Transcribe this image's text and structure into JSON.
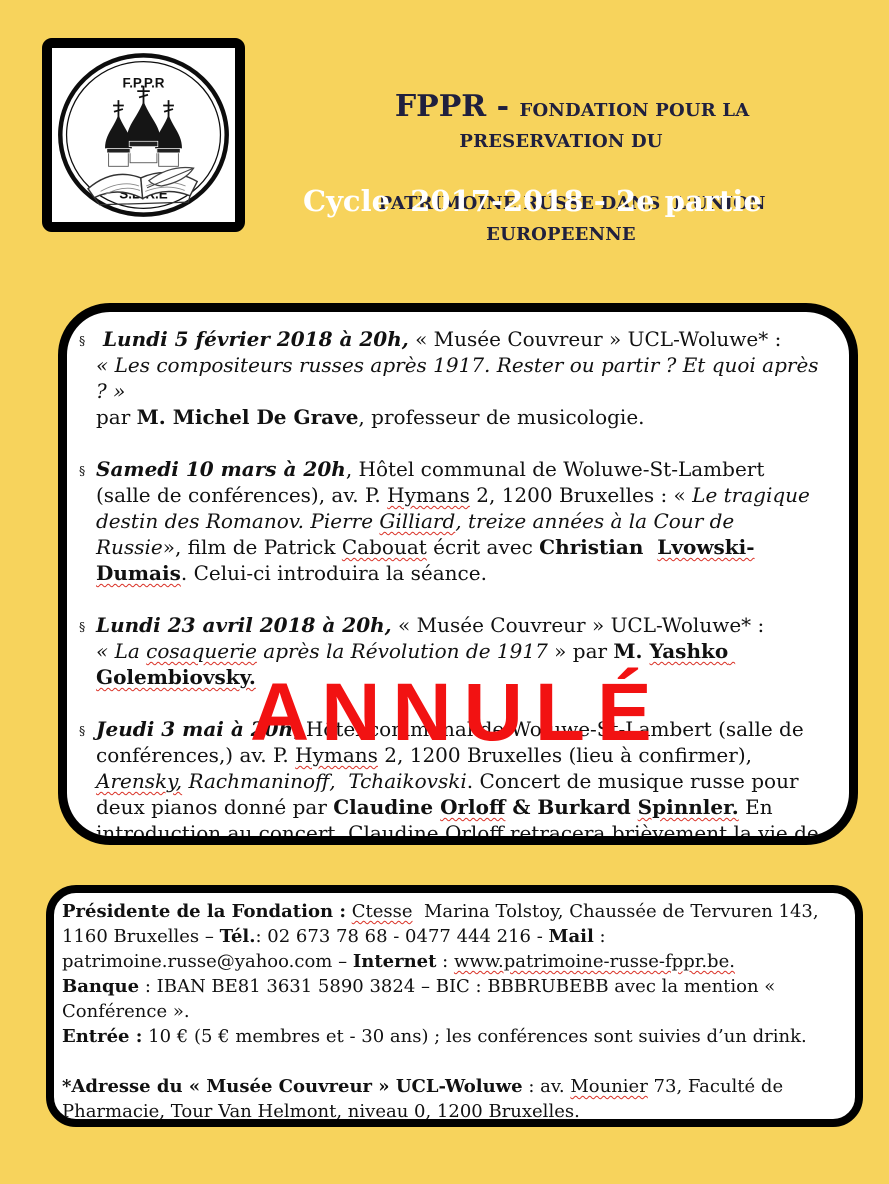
{
  "colors": {
    "background": "#F7D35C",
    "box_background": "#FFFFFF",
    "box_border": "#000000",
    "title": "#20203E",
    "cycle": "#FFFFFF",
    "text": "#111111",
    "cancel": "#F21212",
    "squiggle": "#D93025"
  },
  "logo": {
    "top": "F.P.P.R",
    "bottom": "S.B.R.E"
  },
  "header": {
    "brand": "FPPR - ",
    "line1": "FONDATION POUR LA PRESERVATION DU",
    "line2": "PATRIMOINE RUSSE DANS  L'UNION EUROPEENNE",
    "cycle": "Cycle  2017-2018 - 2e partie"
  },
  "cancel_overlay": "ANNULÉ",
  "events": [
    {
      "marker": "§",
      "runs": [
        {
          "t": " Lundi 5 février 2018 à 20h,",
          "b": 1,
          "i": 1
        },
        {
          "t": " « Musée Couvreur » UCL-Woluwe* :"
        },
        {
          "br": 1
        },
        {
          "t": "« Les compositeurs russes après 1917. Rester ou partir ? Et quoi après ? »",
          "i": 1
        },
        {
          "br": 1
        },
        {
          "t": "par "
        },
        {
          "t": "M. Michel De Grave",
          "b": 1
        },
        {
          "t": ", professeur de musicologie."
        }
      ]
    },
    {
      "marker": "§",
      "runs": [
        {
          "t": "Samedi 10 mars à 20h",
          "b": 1,
          "i": 1
        },
        {
          "t": ", Hôtel communal de Woluwe-St-Lambert (salle de conférences), av. P. "
        },
        {
          "t": "Hymans",
          "sq": 1
        },
        {
          "t": " 2, 1200 Bruxelles : « "
        },
        {
          "t": "Le tragique destin des Romanov. Pierre ",
          "i": 1
        },
        {
          "t": "Gilliard",
          "i": 1,
          "sq": 1
        },
        {
          "t": ", treize années à la Cour de Russie",
          "i": 1
        },
        {
          "t": "», film de Patrick "
        },
        {
          "t": "Cabouat",
          "sq": 1
        },
        {
          "t": " écrit avec "
        },
        {
          "t": "Christian  ",
          "b": 1
        },
        {
          "t": "Lvowski-Dumais",
          "b": 1,
          "sq": 1
        },
        {
          "t": ". Celui-ci introduira la séance."
        }
      ]
    },
    {
      "marker": "§",
      "runs": [
        {
          "t": "Lundi 23 avril 2018 à 20h,",
          "b": 1,
          "i": 1
        },
        {
          "t": " « Musée Couvreur » UCL-Woluwe* :"
        },
        {
          "br": 1
        },
        {
          "t": "« La ",
          "i": 1
        },
        {
          "t": "cosaquerie",
          "i": 1,
          "sq": 1
        },
        {
          "t": " après la Révolution de 1917",
          "i": 1
        },
        {
          "t": " » par "
        },
        {
          "t": "M. ",
          "b": 1
        },
        {
          "t": "Yashko Golembiovsky.",
          "b": 1,
          "sq": 1
        }
      ]
    },
    {
      "marker": "§",
      "runs": [
        {
          "t": "Jeudi 3 mai à 20h",
          "b": 1,
          "i": 1
        },
        {
          "t": ", Hôtel communal de Woluwe-St-Lambert (salle de conférences,) av. P. "
        },
        {
          "t": "Hymans",
          "sq": 1
        },
        {
          "t": " 2, 1200 Bruxelles (lieu à confirmer), "
        },
        {
          "t": "Arensky,",
          "i": 1,
          "sq": 1
        },
        {
          "t": " ",
          "i": 1
        },
        {
          "t": "Rachmaninoff,  Tchaikovski",
          "i": 1
        },
        {
          "t": ". Concert de musique russe pour deux pianos donné par "
        },
        {
          "t": "Claudine ",
          "b": 1
        },
        {
          "t": "Orloff",
          "b": 1,
          "sq": 1
        },
        {
          "t": " & Burkard ",
          "b": 1
        },
        {
          "t": "Spinnler.",
          "b": 1,
          "sq": 1
        },
        {
          "t": " En introduction au concert, Claudine "
        },
        {
          "t": "Orloff",
          "sq": 1
        },
        {
          "t": " retracera brièvement la vie de ses grands-parents, émigrés  russes."
        }
      ]
    }
  ],
  "footer": {
    "paragraphs": [
      {
        "runs": [
          {
            "t": "Présidente de la Fondation :",
            "b": 1
          },
          {
            "t": " "
          },
          {
            "t": "Ctesse",
            "sq": 1
          },
          {
            "t": "  Marina Tolstoy, Chaussée de Tervuren 143, 1160 Bruxelles – "
          },
          {
            "t": "Tél.",
            "b": 1
          },
          {
            "t": ": 02 673 78 68 - 0477 444 216 - "
          },
          {
            "t": "Mail",
            "b": 1
          },
          {
            "t": " : patrimoine.russe@yahoo.com – "
          },
          {
            "t": "Internet",
            "b": 1
          },
          {
            "t": " : "
          },
          {
            "t": "www.patrimoine-russe-fppr.be.",
            "sq": 1
          }
        ]
      },
      {
        "runs": [
          {
            "t": "Banque",
            "b": 1
          },
          {
            "t": " : IBAN BE81 3631 5890 3824 – BIC : BBBRUBEBB avec la mention « Conférence »."
          }
        ]
      },
      {
        "runs": [
          {
            "t": "Entrée :",
            "b": 1
          },
          {
            "t": " 10 € (5 € membres et - 30 ans) ; les conférences sont suivies d’un drink."
          }
        ]
      },
      {
        "gap": true,
        "runs": [
          {
            "t": "*Adresse du « Musée Couvreur » UCL-Woluwe",
            "b": 1
          },
          {
            "t": " : av. "
          },
          {
            "t": "Mounier",
            "sq": 1
          },
          {
            "t": " 73, Faculté de Pharmacie, Tour Van Helmont, niveau 0, 1200 Bruxelles."
          }
        ]
      }
    ]
  }
}
